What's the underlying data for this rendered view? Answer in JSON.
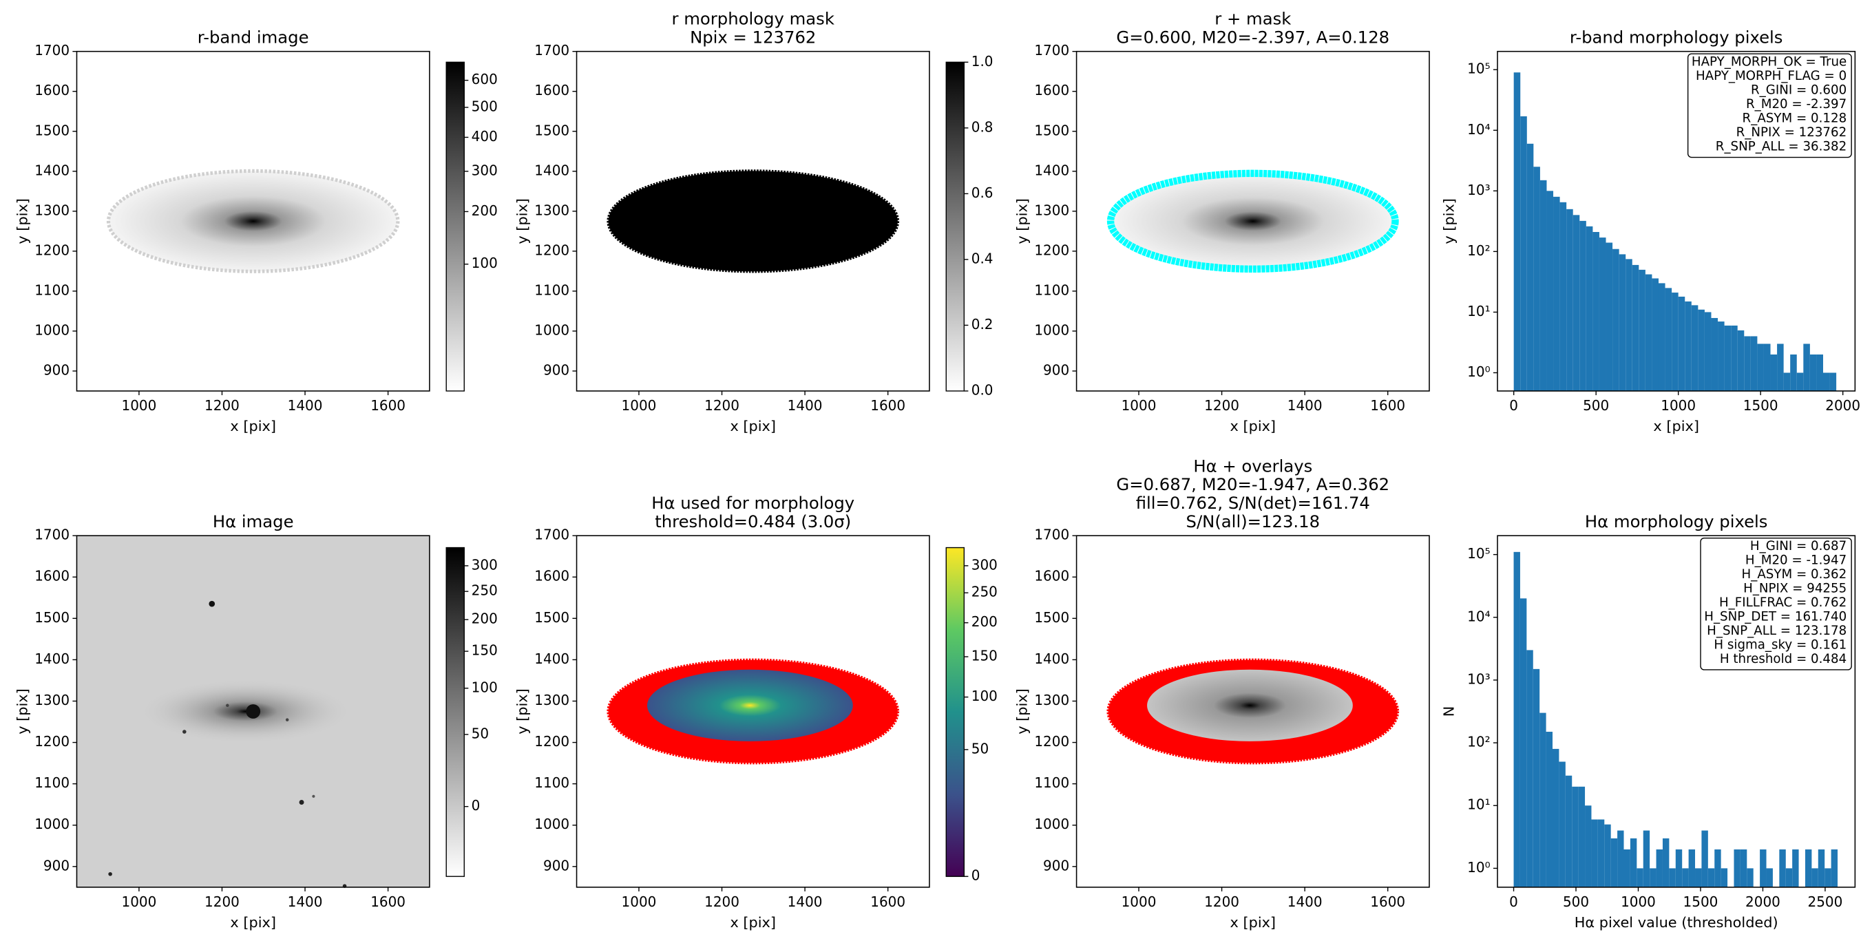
{
  "chart_data": [
    {
      "type": "image",
      "title": [
        "r-band image"
      ],
      "xlabel": "x [pix]",
      "ylabel": "y [pix]",
      "xlim": [
        850,
        1700
      ],
      "ylim": [
        850,
        1700
      ],
      "xticks": [
        1000,
        1200,
        1400,
        1600
      ],
      "yticks": [
        900,
        1000,
        1100,
        1200,
        1300,
        1400,
        1500,
        1600,
        1700
      ],
      "colorbar": {
        "cmap": "gray_r",
        "stretch": "sqrt",
        "clim": [
          0,
          672
        ],
        "ticks": [
          100,
          200,
          300,
          400,
          500,
          600
        ]
      }
    },
    {
      "type": "image",
      "title": [
        "r morphology mask",
        "Npix = 123762"
      ],
      "xlabel": "x [pix]",
      "ylabel": "y [pix]",
      "xlim": [
        850,
        1700
      ],
      "ylim": [
        850,
        1700
      ],
      "xticks": [
        1000,
        1200,
        1400,
        1600
      ],
      "yticks": [
        900,
        1000,
        1100,
        1200,
        1300,
        1400,
        1500,
        1600,
        1700
      ],
      "colorbar": {
        "cmap": "gray_r",
        "stretch": "linear",
        "clim": [
          0,
          1
        ],
        "ticks": [
          {
            "value": 0,
            "label": "0.0"
          },
          0.2,
          0.4,
          0.6,
          0.8,
          {
            "value": 1,
            "label": "1.0"
          }
        ]
      }
    },
    {
      "type": "image",
      "title": [
        "r + mask",
        "G=0.600, M20=-2.397, A=0.128"
      ],
      "xlabel": "x [pix]",
      "ylabel": "y [pix]",
      "xlim": [
        850,
        1700
      ],
      "ylim": [
        850,
        1700
      ],
      "xticks": [
        1000,
        1200,
        1400,
        1600
      ],
      "yticks": [
        900,
        1000,
        1100,
        1200,
        1300,
        1400,
        1500,
        1600,
        1700
      ]
    },
    {
      "type": "histogram",
      "title": [
        "r-band morphology pixels"
      ],
      "xlabel": "x [pix]",
      "ylabel": "y [pix]",
      "color": "#1f77b4",
      "log_y": true,
      "xlim": [
        -99,
        2074
      ],
      "ylim": [
        0.5,
        200000
      ],
      "xticks": [
        0,
        500,
        1000,
        1500,
        2000
      ],
      "yticks": [
        {
          "value": 1,
          "label": "10⁰"
        },
        {
          "value": 10,
          "label": "10¹"
        },
        {
          "value": 100,
          "label": "10²"
        },
        {
          "value": 1000,
          "label": "10³"
        },
        {
          "value": 10000,
          "label": "10⁴"
        },
        {
          "value": 100000,
          "label": "10⁵"
        }
      ],
      "bins": [
        0,
        40,
        80,
        120,
        160,
        200,
        240,
        280,
        320,
        360,
        400,
        440,
        480,
        520,
        560,
        600,
        640,
        680,
        720,
        760,
        800,
        840,
        880,
        920,
        960,
        1000,
        1040,
        1080,
        1120,
        1160,
        1200,
        1240,
        1280,
        1320,
        1360,
        1400,
        1440,
        1480,
        1520,
        1560,
        1600,
        1640,
        1680,
        1720,
        1760,
        1800,
        1840,
        1880,
        1920,
        1960
      ],
      "values": [
        90000,
        17000,
        6000,
        2500,
        1500,
        1000,
        800,
        650,
        500,
        400,
        320,
        260,
        210,
        170,
        140,
        110,
        90,
        75,
        60,
        50,
        42,
        36,
        30,
        25,
        21,
        18,
        15,
        13,
        11,
        10,
        8,
        7,
        6,
        6,
        5,
        4,
        4,
        3,
        3,
        2,
        3,
        1,
        2,
        1,
        3,
        2,
        2,
        1,
        1
      ],
      "annotation": [
        "HAPY_MORPH_OK = True",
        "HAPY_MORPH_FLAG = 0",
        "R_GINI = 0.600",
        "R_M20 = -2.397",
        "R_ASYM = 0.128",
        "R_NPIX = 123762",
        "R_SNP_ALL = 36.382"
      ]
    },
    {
      "type": "image",
      "title": [
        "Hα image"
      ],
      "xlabel": "x [pix]",
      "ylabel": "y [pix]",
      "xlim": [
        850,
        1700
      ],
      "ylim": [
        850,
        1700
      ],
      "xticks": [
        1000,
        1200,
        1400,
        1600
      ],
      "yticks": [
        900,
        1000,
        1100,
        1200,
        1300,
        1400,
        1500,
        1600,
        1700
      ],
      "colorbar": {
        "cmap": "gray_r",
        "stretch": "sqrt",
        "clim": [
          -16,
          338
        ],
        "ticks": [
          0,
          50,
          100,
          150,
          200,
          250,
          300
        ]
      }
    },
    {
      "type": "image",
      "title": [
        "Hα used for morphology",
        "threshold=0.484 (3.0σ)"
      ],
      "xlabel": "x [pix]",
      "ylabel": "y [pix]",
      "xlim": [
        850,
        1700
      ],
      "ylim": [
        850,
        1700
      ],
      "xticks": [
        1000,
        1200,
        1400,
        1600
      ],
      "yticks": [
        900,
        1000,
        1100,
        1200,
        1300,
        1400,
        1500,
        1600,
        1700
      ],
      "colorbar": {
        "cmap": "viridis",
        "stretch": "sqrt",
        "clim": [
          0,
          336
        ],
        "ticks": [
          0,
          50,
          100,
          150,
          200,
          250,
          300
        ]
      }
    },
    {
      "type": "image",
      "title": [
        "Hα + overlays",
        "G=0.687, M20=-1.947, A=0.362",
        "fill=0.762, S/N(det)=161.74",
        "S/N(all)=123.18"
      ],
      "xlabel": "x [pix]",
      "ylabel": "y [pix]",
      "xlim": [
        850,
        1700
      ],
      "ylim": [
        850,
        1700
      ],
      "xticks": [
        1000,
        1200,
        1400,
        1600
      ],
      "yticks": [
        900,
        1000,
        1100,
        1200,
        1300,
        1400,
        1500,
        1600,
        1700
      ]
    },
    {
      "type": "histogram",
      "title": [
        "Hα morphology pixels"
      ],
      "xlabel": "Hα pixel value (thresholded)",
      "ylabel": "N",
      "color": "#1f77b4",
      "log_y": true,
      "xlim": [
        -130,
        2740
      ],
      "ylim": [
        0.5,
        200000
      ],
      "xticks": [
        0,
        500,
        1000,
        1500,
        2000,
        2500
      ],
      "yticks": [
        {
          "value": 1,
          "label": "10⁰"
        },
        {
          "value": 10,
          "label": "10¹"
        },
        {
          "value": 100,
          "label": "10²"
        },
        {
          "value": 1000,
          "label": "10³"
        },
        {
          "value": 10000,
          "label": "10⁴"
        },
        {
          "value": 100000,
          "label": "10⁵"
        }
      ],
      "bins": [
        0,
        52,
        104,
        156,
        208,
        260,
        312,
        364,
        416,
        468,
        520,
        572,
        624,
        676,
        728,
        780,
        832,
        884,
        936,
        988,
        1040,
        1092,
        1144,
        1196,
        1248,
        1300,
        1352,
        1404,
        1456,
        1508,
        1560,
        1612,
        1664,
        1716,
        1768,
        1820,
        1872,
        1924,
        1976,
        2028,
        2080,
        2132,
        2184,
        2236,
        2288,
        2340,
        2392,
        2444,
        2496,
        2548,
        2600
      ],
      "values": [
        110000,
        20000,
        3000,
        1500,
        300,
        150,
        80,
        50,
        30,
        20,
        20,
        10,
        6,
        6,
        5,
        3,
        4,
        2,
        3,
        1,
        4,
        1,
        2,
        3,
        1,
        2,
        1,
        2,
        1,
        4,
        1,
        2,
        1,
        0,
        2,
        2,
        1,
        0,
        2,
        1,
        0,
        2,
        1,
        2,
        0,
        2,
        1,
        2,
        1,
        2
      ],
      "annotation": [
        "H_GINI = 0.687",
        "H_M20 = -1.947",
        "H_ASYM = 0.362",
        "H_NPIX = 94255",
        "H_FILLFRAC = 0.762",
        "H_SNP_DET = 161.740",
        "H_SNP_ALL = 123.178",
        "H sigma_sky = 0.161",
        "H threshold = 0.484"
      ]
    }
  ]
}
